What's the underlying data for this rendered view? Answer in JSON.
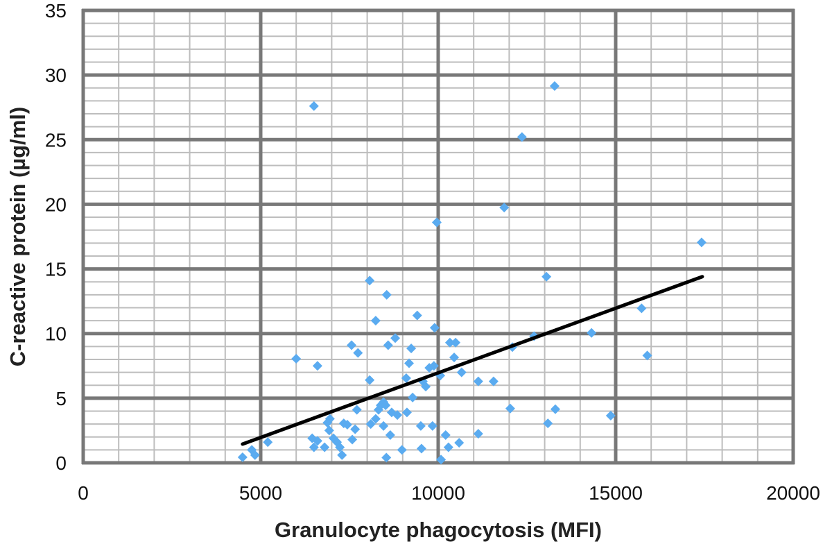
{
  "chart_data": {
    "type": "scatter",
    "title": "",
    "xlabel": "Granulocyte phagocytosis (MFI)",
    "ylabel": "C-reactive protein (µg/ml)",
    "xlim": [
      0,
      20000
    ],
    "ylim": [
      0,
      35
    ],
    "x_ticks": [
      "0",
      "5000",
      "10000",
      "15000",
      "20000"
    ],
    "y_ticks": [
      "0",
      "5",
      "10",
      "15",
      "20",
      "25",
      "30",
      "35"
    ],
    "grid": true,
    "marker_color": "#5aabf0",
    "trendline": {
      "x": [
        4490,
        17440
      ],
      "y": [
        1.45,
        14.4
      ],
      "color": "#000000"
    },
    "points": [
      [
        4490,
        0.43
      ],
      [
        4750,
        1.0
      ],
      [
        4840,
        0.6
      ],
      [
        5200,
        1.6
      ],
      [
        6000,
        8.05
      ],
      [
        6500,
        27.6
      ],
      [
        6600,
        7.5
      ],
      [
        6450,
        1.9
      ],
      [
        6500,
        1.2
      ],
      [
        6600,
        1.7
      ],
      [
        6800,
        1.2
      ],
      [
        6880,
        3.1
      ],
      [
        6930,
        2.5
      ],
      [
        6950,
        3.4
      ],
      [
        7050,
        1.9
      ],
      [
        7150,
        1.6
      ],
      [
        7230,
        1.2
      ],
      [
        7290,
        0.6
      ],
      [
        7340,
        3.05
      ],
      [
        7440,
        2.95
      ],
      [
        7560,
        9.1
      ],
      [
        7580,
        1.8
      ],
      [
        7660,
        2.6
      ],
      [
        7710,
        4.1
      ],
      [
        7740,
        8.5
      ],
      [
        8070,
        6.4
      ],
      [
        8070,
        14.1
      ],
      [
        8100,
        3.0
      ],
      [
        8240,
        3.4
      ],
      [
        8240,
        11.0
      ],
      [
        8320,
        4.1
      ],
      [
        8380,
        4.45
      ],
      [
        8460,
        4.7
      ],
      [
        8520,
        4.45
      ],
      [
        8460,
        2.85
      ],
      [
        8540,
        0.4
      ],
      [
        8550,
        13.0
      ],
      [
        8590,
        9.1
      ],
      [
        8650,
        2.15
      ],
      [
        8690,
        3.9
      ],
      [
        8790,
        9.65
      ],
      [
        8850,
        3.7
      ],
      [
        8980,
        1.0
      ],
      [
        9100,
        6.55
      ],
      [
        9120,
        3.9
      ],
      [
        9180,
        7.7
      ],
      [
        9240,
        8.85
      ],
      [
        9280,
        5.05
      ],
      [
        9410,
        11.4
      ],
      [
        9510,
        2.85
      ],
      [
        9530,
        1.1
      ],
      [
        9570,
        6.3
      ],
      [
        9650,
        5.9
      ],
      [
        9750,
        7.35
      ],
      [
        9840,
        2.85
      ],
      [
        9880,
        7.5
      ],
      [
        9900,
        10.45
      ],
      [
        9960,
        18.6
      ],
      [
        10060,
        6.75
      ],
      [
        10080,
        0.25
      ],
      [
        10210,
        2.15
      ],
      [
        10290,
        1.2
      ],
      [
        10330,
        9.3
      ],
      [
        10450,
        8.15
      ],
      [
        10490,
        9.3
      ],
      [
        10590,
        1.55
      ],
      [
        10660,
        7.0
      ],
      [
        11130,
        2.25
      ],
      [
        11130,
        6.3
      ],
      [
        11560,
        6.3
      ],
      [
        12030,
        4.2
      ],
      [
        12090,
        8.95
      ],
      [
        11860,
        19.75
      ],
      [
        12360,
        25.2
      ],
      [
        12700,
        9.8
      ],
      [
        13090,
        3.05
      ],
      [
        13050,
        14.4
      ],
      [
        13280,
        29.15
      ],
      [
        13300,
        4.15
      ],
      [
        14320,
        10.05
      ],
      [
        14860,
        3.65
      ],
      [
        15730,
        11.95
      ],
      [
        15890,
        8.3
      ],
      [
        17420,
        17.05
      ]
    ]
  }
}
